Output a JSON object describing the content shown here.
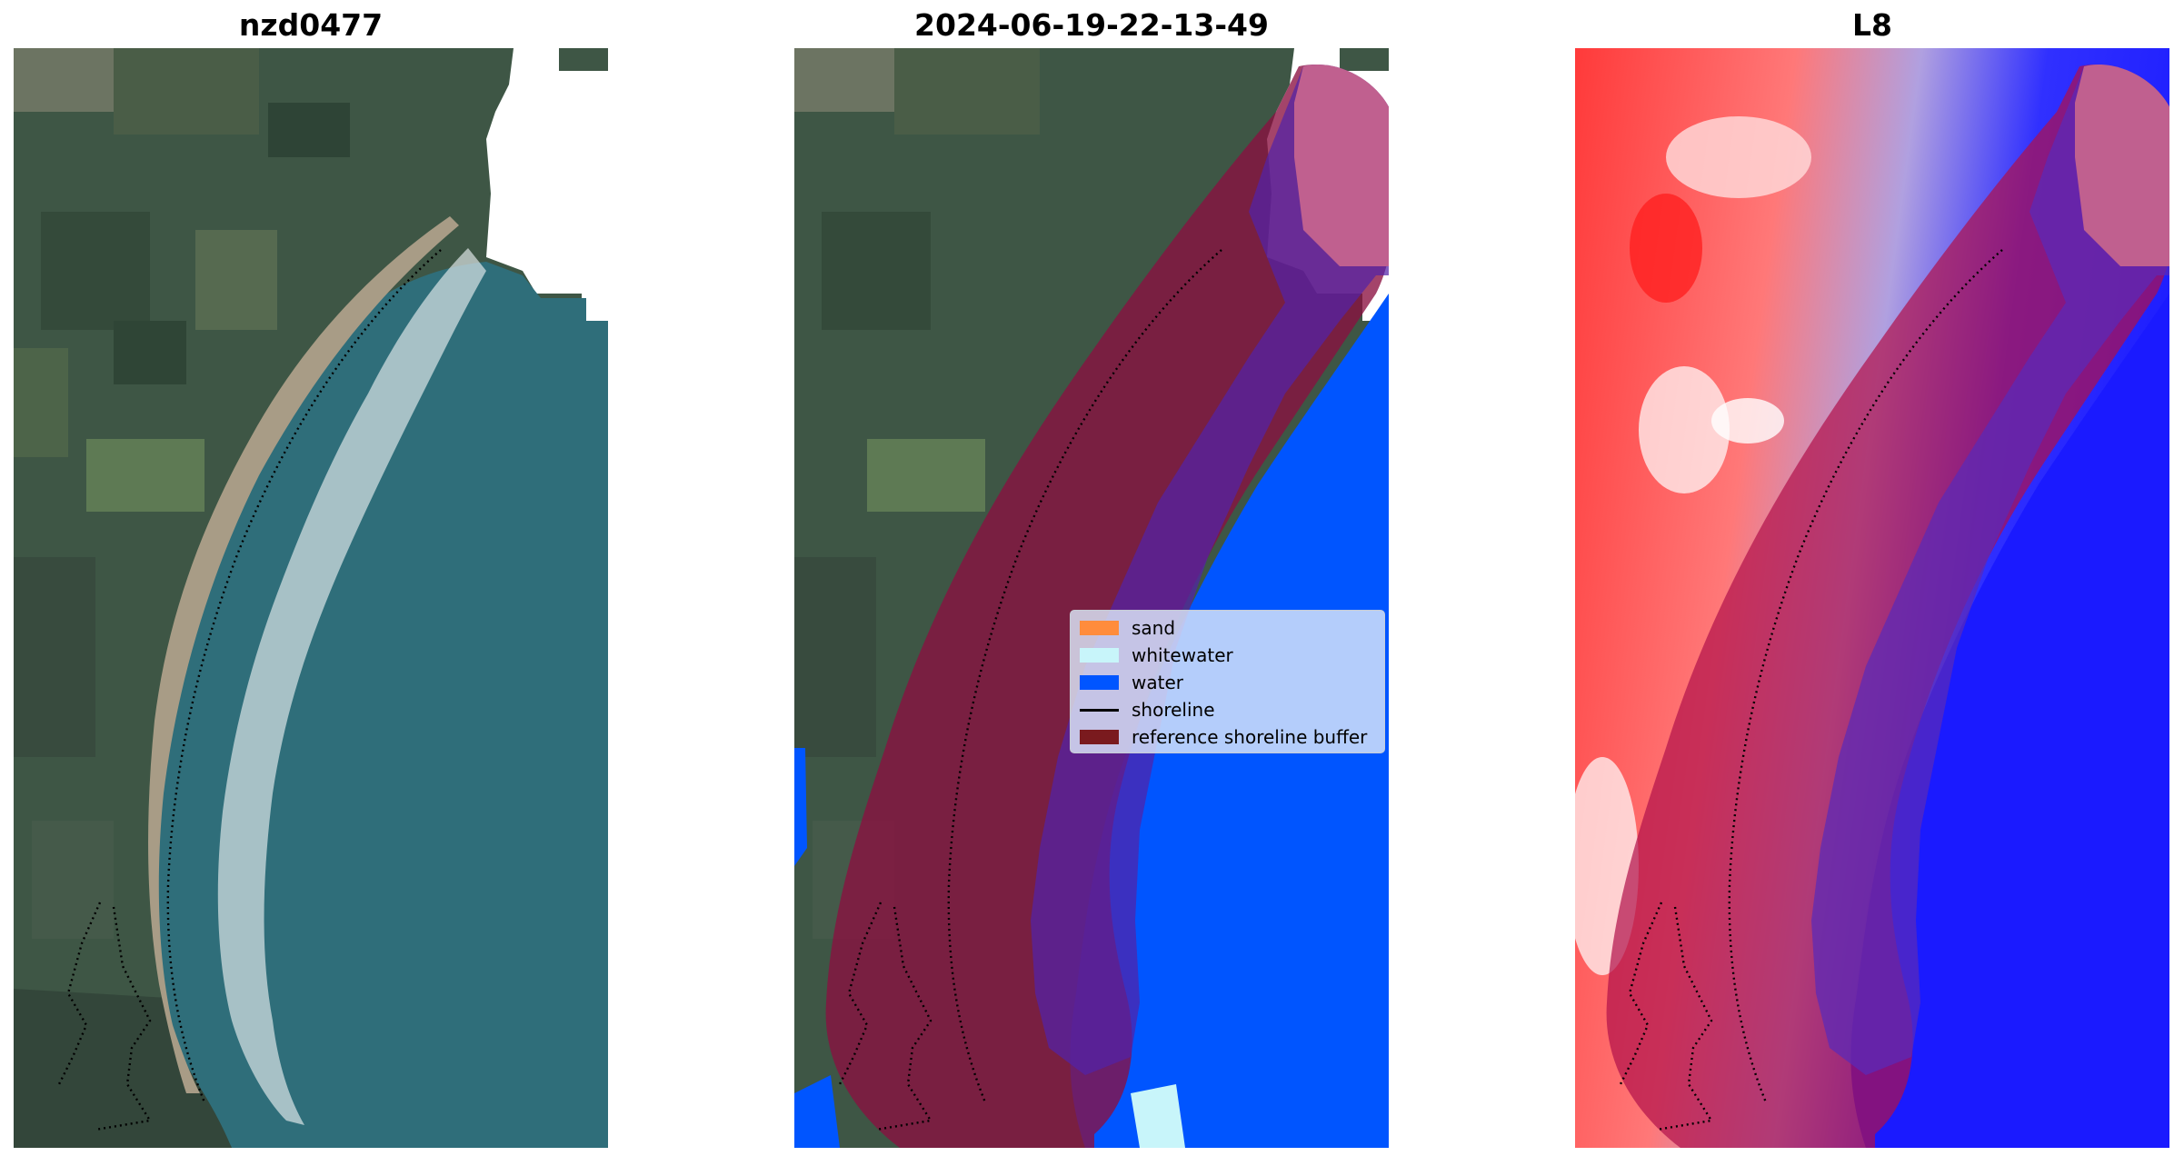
{
  "panels": {
    "left_title": "nzd0477",
    "middle_title": "2024-06-19-22-13-49",
    "right_title": "L8"
  },
  "legend": {
    "items": [
      {
        "label": "sand",
        "color": "#ff8c3c",
        "kind": "patch"
      },
      {
        "label": "whitewater",
        "color": "#c8f5fa",
        "kind": "patch"
      },
      {
        "label": "water",
        "color": "#0055ff",
        "kind": "patch"
      },
      {
        "label": "shoreline",
        "color": "#000000",
        "kind": "line"
      },
      {
        "label": "reference shoreline buffer",
        "color": "#7a1a1e",
        "kind": "patch"
      }
    ]
  },
  "colors": {
    "land": "#3e5645",
    "ocean": "#2f6e7a",
    "beach": "#a89c86",
    "surf": "#e8eef0",
    "buffer": "#8a1040",
    "water_class": "#0055ff",
    "index_positive": "#ff1e1e",
    "index_negative": "#1e1eff"
  }
}
